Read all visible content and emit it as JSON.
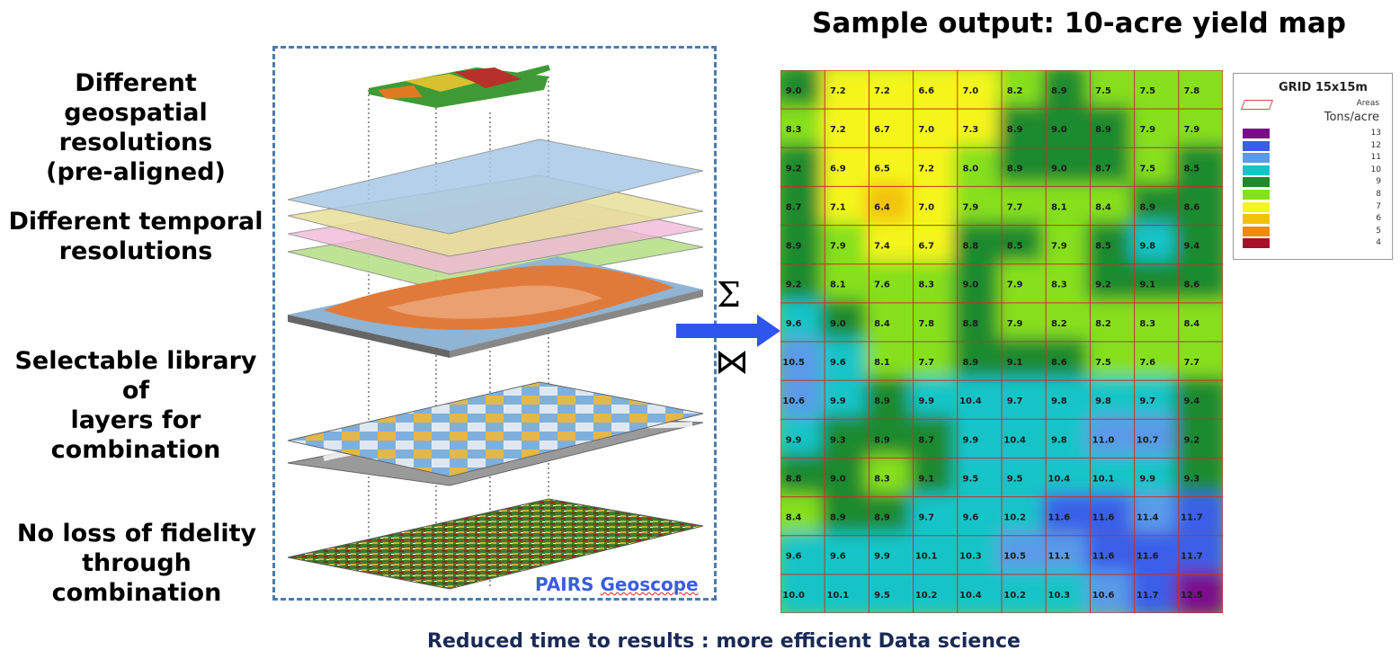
{
  "labels": {
    "geospatial": [
      "Different geospatial",
      "resolutions",
      "(pre-aligned)"
    ],
    "temporal": [
      "Different temporal",
      "resolutions"
    ],
    "library": [
      "Selectable library of",
      "layers for",
      "combination"
    ],
    "fidelity": [
      "No loss of fidelity",
      "through combination"
    ]
  },
  "title": "Sample output: 10-acre yield map",
  "footer": "Reduced time to results : more efficient Data science",
  "pairs": {
    "part1": "PAIRS ",
    "part2": "Geoscope"
  },
  "operators": {
    "sigma": "Σ",
    "bowtie": "⋈"
  },
  "legend": {
    "title": "GRID 15x15m",
    "areas_label": "Areas",
    "units": "Tons/acre",
    "items": [
      {
        "value": "13",
        "color": "#7b0a8c"
      },
      {
        "value": "12",
        "color": "#3b5ee8"
      },
      {
        "value": "11",
        "color": "#5a9ae8"
      },
      {
        "value": "10",
        "color": "#16c4c8"
      },
      {
        "value": "9",
        "color": "#1f8a2e"
      },
      {
        "value": "8",
        "color": "#86e01a"
      },
      {
        "value": "7",
        "color": "#f5f51c"
      },
      {
        "value": "6",
        "color": "#f2c20a"
      },
      {
        "value": "5",
        "color": "#f08a0c"
      },
      {
        "value": "4",
        "color": "#a8102a"
      }
    ]
  },
  "grid": [
    [
      "9.0",
      "7.2",
      "7.2",
      "6.6",
      "7.0",
      "8.2",
      "8.9",
      "7.5",
      "7.5",
      "7.8"
    ],
    [
      "8.3",
      "7.2",
      "6.7",
      "7.0",
      "7.3",
      "8.9",
      "9.0",
      "8.9",
      "7.9",
      "7.9"
    ],
    [
      "9.2",
      "6.9",
      "6.5",
      "7.2",
      "8.0",
      "8.9",
      "9.0",
      "8.7",
      "7.5",
      "8.5"
    ],
    [
      "8.7",
      "7.1",
      "6.4",
      "7.0",
      "7.9",
      "7.7",
      "8.1",
      "8.4",
      "8.9",
      "8.6"
    ],
    [
      "8.9",
      "7.9",
      "7.4",
      "6.7",
      "8.8",
      "8.5",
      "7.9",
      "8.5",
      "9.8",
      "9.4"
    ],
    [
      "9.2",
      "8.1",
      "7.6",
      "8.3",
      "9.0",
      "7.9",
      "8.3",
      "9.2",
      "9.1",
      "8.6"
    ],
    [
      "9.6",
      "9.0",
      "8.4",
      "7.8",
      "8.8",
      "7.9",
      "8.2",
      "8.2",
      "8.3",
      "8.4"
    ],
    [
      "10.5",
      "9.6",
      "8.1",
      "7.7",
      "8.9",
      "9.1",
      "8.6",
      "7.5",
      "7.6",
      "7.7"
    ],
    [
      "10.6",
      "9.9",
      "8.9",
      "9.9",
      "10.4",
      "9.7",
      "9.8",
      "9.8",
      "9.7",
      "9.4"
    ],
    [
      "9.9",
      "9.3",
      "8.9",
      "8.7",
      "9.9",
      "10.4",
      "9.8",
      "11.0",
      "10.7",
      "9.2"
    ],
    [
      "8.8",
      "9.0",
      "8.3",
      "9.1",
      "9.5",
      "9.5",
      "10.4",
      "10.1",
      "9.9",
      "9.3"
    ],
    [
      "8.4",
      "8.9",
      "8.9",
      "9.7",
      "9.6",
      "10.2",
      "11.6",
      "11.6",
      "11.4",
      "11.7"
    ],
    [
      "9.6",
      "9.6",
      "9.9",
      "10.1",
      "10.3",
      "10.5",
      "11.1",
      "11.6",
      "11.6",
      "11.7"
    ],
    [
      "10.0",
      "10.1",
      "9.5",
      "10.2",
      "10.4",
      "10.2",
      "10.3",
      "10.6",
      "11.7",
      "12.5"
    ]
  ]
}
